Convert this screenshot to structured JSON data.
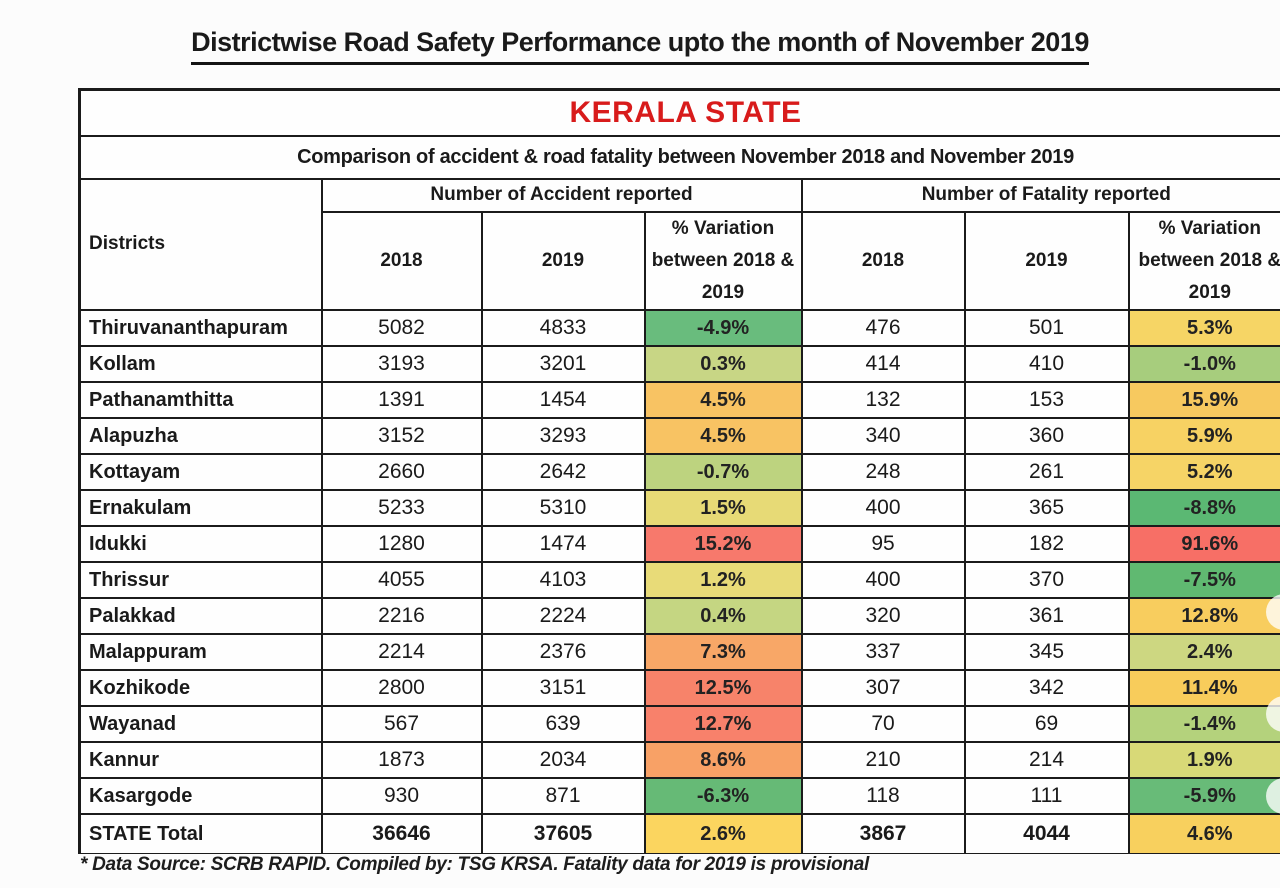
{
  "page": {
    "title": "Districtwise Road Safety Performance upto the month of November 2019",
    "footnote": "* Data Source: SCRB RAPID. Compiled by: TSG KRSA. Fatality data for 2019 is provisional"
  },
  "table": {
    "state_header": "KERALA STATE",
    "subtitle": "Comparison of accident & road fatality between November 2018 and November 2019",
    "columns": {
      "districts_label": "Districts",
      "accident_group": "Number of Accident reported",
      "fatality_group": "Number of Fatality reported",
      "year_2018": "2018",
      "year_2019": "2019",
      "variation": "% Variation between 2018 & 2019"
    },
    "colors": {
      "state_header_text": "#d81b1b",
      "border": "#1b1b1b",
      "negative_green": "#5cb873",
      "neutral_yellow": "#f6d465",
      "positive_red": "#f7756b"
    },
    "rows": [
      {
        "district": "Thiruvananthapuram",
        "acc_2018": "5082",
        "acc_2019": "4833",
        "acc_var": "-4.9%",
        "acc_color": "#69bc7d",
        "fat_2018": "476",
        "fat_2019": "501",
        "fat_var": "5.3%",
        "fat_color": "#f6d565",
        "is_total": false
      },
      {
        "district": "Kollam",
        "acc_2018": "3193",
        "acc_2019": "3201",
        "acc_var": "0.3%",
        "acc_color": "#c8d685",
        "fat_2018": "414",
        "fat_2019": "410",
        "fat_var": "-1.0%",
        "fat_color": "#a7cd7d",
        "is_total": false
      },
      {
        "district": "Pathanamthitta",
        "acc_2018": "1391",
        "acc_2019": "1454",
        "acc_var": "4.5%",
        "acc_color": "#f8c363",
        "fat_2018": "132",
        "fat_2019": "153",
        "fat_var": "15.9%",
        "fat_color": "#f7c95f",
        "is_total": false
      },
      {
        "district": "Alapuzha",
        "acc_2018": "3152",
        "acc_2019": "3293",
        "acc_var": "4.5%",
        "acc_color": "#f8c363",
        "fat_2018": "340",
        "fat_2019": "360",
        "fat_var": "5.9%",
        "fat_color": "#f7d263",
        "is_total": false
      },
      {
        "district": "Kottayam",
        "acc_2018": "2660",
        "acc_2019": "2642",
        "acc_var": "-0.7%",
        "acc_color": "#bdd37f",
        "fat_2018": "248",
        "fat_2019": "261",
        "fat_var": "5.2%",
        "fat_color": "#f6d466",
        "is_total": false
      },
      {
        "district": "Ernakulam",
        "acc_2018": "5233",
        "acc_2019": "5310",
        "acc_var": "1.5%",
        "acc_color": "#e7da76",
        "fat_2018": "400",
        "fat_2019": "365",
        "fat_var": "-8.8%",
        "fat_color": "#5bb873",
        "is_total": false
      },
      {
        "district": "Idukki",
        "acc_2018": "1280",
        "acc_2019": "1474",
        "acc_var": "15.2%",
        "acc_color": "#f7796c",
        "fat_2018": "95",
        "fat_2019": "182",
        "fat_var": "91.6%",
        "fat_color": "#f76f66",
        "is_total": false
      },
      {
        "district": "Thrissur",
        "acc_2018": "4055",
        "acc_2019": "4103",
        "acc_var": "1.2%",
        "acc_color": "#e8db78",
        "fat_2018": "400",
        "fat_2019": "370",
        "fat_var": "-7.5%",
        "fat_color": "#60b971",
        "is_total": false
      },
      {
        "district": "Palakkad",
        "acc_2018": "2216",
        "acc_2019": "2224",
        "acc_var": "0.4%",
        "acc_color": "#c5d682",
        "fat_2018": "320",
        "fat_2019": "361",
        "fat_var": "12.8%",
        "fat_color": "#f8cd5e",
        "is_total": false
      },
      {
        "district": "Malappuram",
        "acc_2018": "2214",
        "acc_2019": "2376",
        "acc_var": "7.3%",
        "acc_color": "#f8a767",
        "fat_2018": "337",
        "fat_2019": "345",
        "fat_var": "2.4%",
        "fat_color": "#cdd781",
        "is_total": false
      },
      {
        "district": "Kozhikode",
        "acc_2018": "2800",
        "acc_2019": "3151",
        "acc_var": "12.5%",
        "acc_color": "#f7836a",
        "fat_2018": "307",
        "fat_2019": "342",
        "fat_var": "11.4%",
        "fat_color": "#f8cc5b",
        "is_total": false
      },
      {
        "district": "Wayanad",
        "acc_2018": "567",
        "acc_2019": "639",
        "acc_var": "12.7%",
        "acc_color": "#f8816b",
        "fat_2018": "70",
        "fat_2019": "69",
        "fat_var": "-1.4%",
        "fat_color": "#b4d27c",
        "is_total": false
      },
      {
        "district": "Kannur",
        "acc_2018": "1873",
        "acc_2019": "2034",
        "acc_var": "8.6%",
        "acc_color": "#f8a166",
        "fat_2018": "210",
        "fat_2019": "214",
        "fat_var": "1.9%",
        "fat_color": "#d8d977",
        "is_total": false
      },
      {
        "district": "Kasargode",
        "acc_2018": "930",
        "acc_2019": "871",
        "acc_var": "-6.3%",
        "acc_color": "#66ba76",
        "fat_2018": "118",
        "fat_2019": "111",
        "fat_var": "-5.9%",
        "fat_color": "#68bb78",
        "is_total": false
      },
      {
        "district": "STATE Total",
        "acc_2018": "36646",
        "acc_2019": "37605",
        "acc_var": "2.6%",
        "acc_color": "#fbd55f",
        "fat_2018": "3867",
        "fat_2019": "4044",
        "fat_var": "4.6%",
        "fat_color": "#f8d05e",
        "is_total": true
      }
    ]
  }
}
